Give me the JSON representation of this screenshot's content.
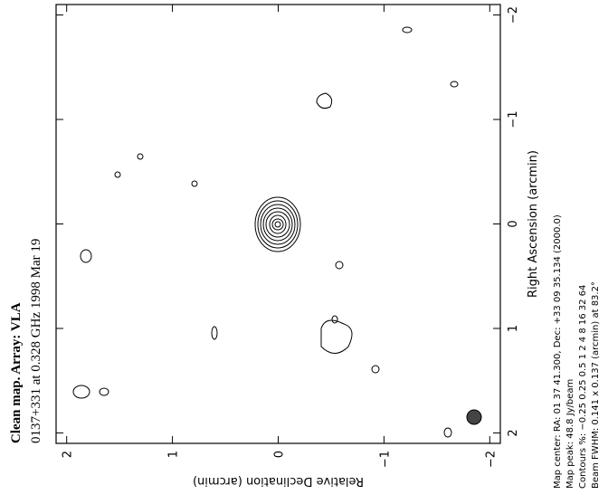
{
  "chart_data": {
    "type": "contour",
    "title": "Clean map. Array: VLA",
    "subtitle": "0137+331 at 0.328 GHz 1998 Mar 19",
    "xlabel": "Right Ascension   (arcmin)",
    "ylabel": "Relative Declination   (arcmin)",
    "xlim": [
      2.1,
      -2.1
    ],
    "ylim": [
      2.1,
      -2.1
    ],
    "xticks": [
      {
        "value": 2,
        "label": "2"
      },
      {
        "value": 1,
        "label": "1"
      },
      {
        "value": 0,
        "label": "0"
      },
      {
        "value": -1,
        "label": "−1"
      },
      {
        "value": -2,
        "label": "−2"
      }
    ],
    "yticks": [
      {
        "value": 2,
        "label": "2"
      },
      {
        "value": 1,
        "label": "1"
      },
      {
        "value": 0,
        "label": "0"
      },
      {
        "value": -1,
        "label": "−1"
      },
      {
        "value": -2,
        "label": "−2"
      }
    ],
    "notes": [
      "Map center:  RA: 01 37 41.300,   Dec: +33 09 35.134 (2000.0)",
      "Map peak: 48.8 Jy/beam",
      "Contours %: −0.25 0.25 0.5 1 2 4 8 16 32 64",
      "Beam FWHM: 0.141 x 0.137 (arcmin) at 83.2°"
    ],
    "color": "#000000"
  }
}
